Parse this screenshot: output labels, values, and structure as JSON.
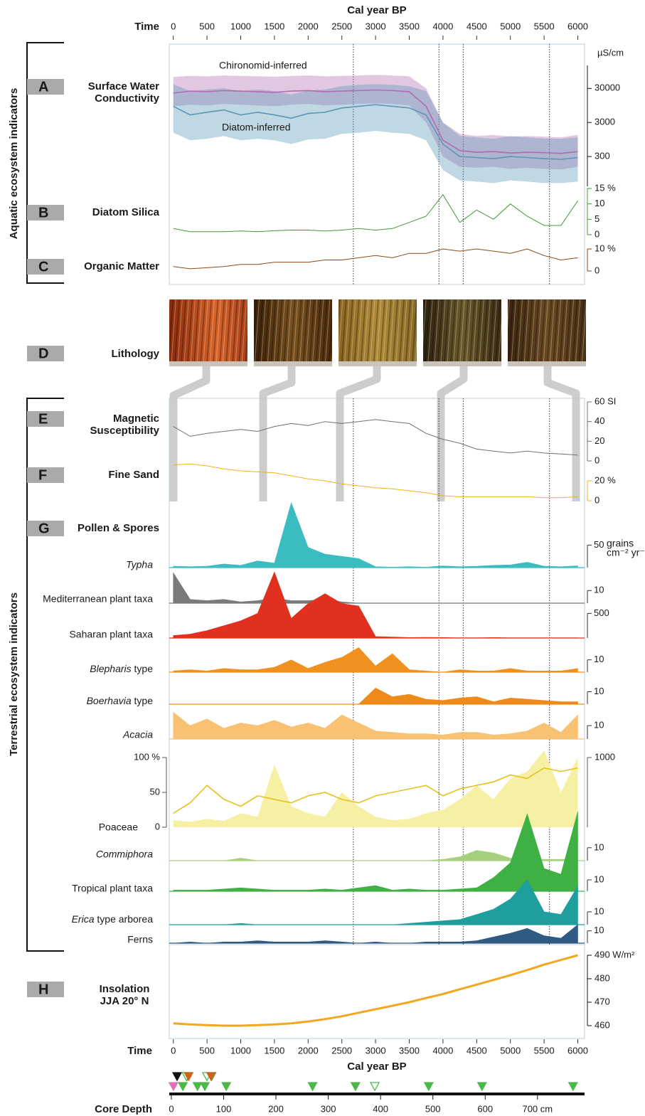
{
  "time_axis": {
    "title": "Time",
    "label": "Cal year BP",
    "xlim": [
      -60,
      6100
    ],
    "xticks": [
      0,
      500,
      1000,
      1500,
      2000,
      2500,
      3000,
      3500,
      4000,
      4500,
      5000,
      5500,
      6000
    ]
  },
  "years": [
    0,
    250,
    500,
    750,
    1000,
    1250,
    1500,
    1750,
    2000,
    2250,
    2500,
    2750,
    3000,
    3250,
    3500,
    3750,
    4000,
    4250,
    4500,
    4750,
    5000,
    5250,
    5500,
    5750,
    6000
  ],
  "reference_lines": [
    2670,
    3940,
    4300,
    5580
  ],
  "groups": [
    "Aquatic ecosystem indicators",
    "Terrestrial ecosystem indicators"
  ],
  "lithology": {
    "letter": "D",
    "title": "Lithology"
  },
  "pollen": {
    "letter": "G",
    "title": "Pollen & Spores"
  },
  "chart_data": [
    {
      "type": "band",
      "letter": "A",
      "title": [
        "Surface Water",
        "Conductivity"
      ],
      "unit": "µS/cm",
      "log": true,
      "ylim": [
        40,
        600000
      ],
      "yticks": [
        300,
        3000,
        30000
      ],
      "series": [
        {
          "name": "Chironomid-inferred",
          "color": "#b46cb0",
          "values": [
            22000,
            25000,
            24000,
            26000,
            25000,
            24000,
            23000,
            25000,
            26000,
            24000,
            25000,
            26000,
            27000,
            26000,
            24000,
            9000,
            900,
            450,
            400,
            420,
            380,
            400,
            390,
            370,
            420
          ],
          "upper": [
            65000,
            70000,
            68000,
            72000,
            70000,
            68000,
            66000,
            70000,
            72000,
            68000,
            70000,
            72000,
            75000,
            72000,
            68000,
            30000,
            3000,
            1400,
            1200,
            1300,
            1150,
            1200,
            1150,
            1100,
            1300
          ],
          "lower": [
            9000,
            10000,
            9500,
            10500,
            10000,
            9500,
            9000,
            10000,
            10500,
            9500,
            10000,
            10500,
            11000,
            10500,
            9500,
            3000,
            300,
            150,
            140,
            150,
            130,
            140,
            130,
            125,
            150
          ]
        },
        {
          "name": "Diatom-inferred",
          "color": "#5a98b6",
          "values": [
            9000,
            5000,
            6000,
            7000,
            5000,
            6000,
            5000,
            4000,
            5500,
            6000,
            8000,
            9000,
            10000,
            9000,
            8000,
            5000,
            700,
            300,
            280,
            260,
            300,
            280,
            260,
            250,
            280
          ],
          "upper": [
            40000,
            25000,
            28000,
            30000,
            25000,
            28000,
            25000,
            20000,
            26000,
            28000,
            35000,
            38000,
            40000,
            38000,
            35000,
            25000,
            3000,
            1200,
            1100,
            1000,
            1200,
            1100,
            1000,
            1000,
            1100
          ],
          "lower": [
            1500,
            900,
            1000,
            1200,
            900,
            1000,
            900,
            700,
            950,
            1000,
            1400,
            1500,
            1700,
            1500,
            1400,
            900,
            120,
            60,
            55,
            50,
            60,
            55,
            50,
            50,
            55
          ]
        }
      ]
    },
    {
      "type": "line",
      "letter": "B",
      "title": [
        "Diatom Silica"
      ],
      "color": "#3d9b35",
      "ylim": [
        0,
        15
      ],
      "yticks": [
        0,
        5,
        10,
        {
          "value": 15,
          "label": "15 %"
        }
      ],
      "values": [
        2,
        1,
        1,
        1,
        1.2,
        1,
        1.3,
        1.5,
        1.5,
        1.2,
        1.5,
        2,
        1.5,
        2,
        4,
        6,
        13,
        4,
        8,
        5,
        10,
        6,
        3,
        3,
        11
      ]
    },
    {
      "type": "line",
      "letter": "C",
      "title": [
        "Organic Matter"
      ],
      "color": "#8a4a12",
      "ylim": [
        0,
        10
      ],
      "yticks": [
        0,
        {
          "value": 10,
          "label": "10 %"
        }
      ],
      "values": [
        2,
        1,
        1.5,
        2,
        3,
        3,
        4,
        4,
        4,
        5,
        5,
        6,
        7,
        6,
        8,
        8,
        10,
        9,
        10,
        9,
        8,
        10,
        7,
        5,
        6
      ]
    },
    {
      "type": "line",
      "letter": "E",
      "title": [
        "Magnetic",
        "Susceptibility"
      ],
      "color": "#707070",
      "ylim": [
        0,
        60
      ],
      "yticks": [
        0,
        20,
        40,
        {
          "value": 60,
          "label": "60 SI"
        }
      ],
      "values": [
        35,
        25,
        28,
        30,
        32,
        30,
        35,
        38,
        36,
        40,
        38,
        40,
        42,
        40,
        38,
        28,
        22,
        18,
        12,
        10,
        8,
        10,
        8,
        7,
        6
      ]
    },
    {
      "type": "line",
      "letter": "F",
      "title": [
        "Fine Sand"
      ],
      "color": "#f2b21e",
      "ylim": [
        0,
        60
      ],
      "yticks": [
        0,
        {
          "value": 20,
          "label": "20 %"
        }
      ],
      "values": [
        36,
        37,
        35,
        32,
        30,
        29,
        28,
        25,
        22,
        20,
        17,
        15,
        13,
        12,
        10,
        8,
        5,
        4,
        4,
        4,
        4,
        4,
        3,
        3,
        4
      ]
    },
    {
      "type": "area",
      "name": "Typha",
      "italic": "all",
      "color": "#3bbcc0",
      "ylim": [
        0,
        150
      ],
      "yticks": [
        50
      ],
      "unit": [
        "grains",
        "cm⁻² yr⁻¹"
      ],
      "values": [
        3,
        2,
        3,
        8,
        5,
        15,
        10,
        144,
        45,
        30,
        25,
        20,
        2,
        1,
        2,
        1,
        4,
        2,
        3,
        5,
        6,
        12,
        3,
        2,
        4
      ]
    },
    {
      "type": "area",
      "name": "Mediterranean plant taxa",
      "color": "#7a7a7a",
      "ylim": [
        0,
        27
      ],
      "yticks": [
        10
      ],
      "values": [
        24,
        3,
        2,
        3,
        1,
        2,
        4,
        2,
        2,
        3,
        1,
        0,
        0,
        0,
        0,
        0,
        0,
        0,
        0,
        0,
        0,
        0,
        0,
        0,
        0
      ]
    },
    {
      "type": "area",
      "name": "Saharan plant taxa",
      "color": "#e0301f",
      "ylim": [
        0,
        1400
      ],
      "yticks": [
        500
      ],
      "values": [
        50,
        80,
        150,
        250,
        350,
        500,
        1340,
        400,
        700,
        900,
        700,
        650,
        30,
        20,
        10,
        15,
        10,
        5,
        5,
        10,
        5,
        5,
        5,
        5,
        5
      ]
    },
    {
      "type": "area",
      "name": "Blepharis type",
      "italic": "first",
      "color": "#f0901e",
      "ylim": [
        0,
        26
      ],
      "yticks": [
        10
      ],
      "values": [
        1,
        2,
        1,
        3,
        2,
        2,
        4,
        10,
        3,
        8,
        12,
        20,
        5,
        15,
        2,
        1,
        0,
        2,
        1,
        1,
        3,
        1,
        1,
        1,
        3
      ]
    },
    {
      "type": "area",
      "name": "Boerhavia type",
      "italic": "first",
      "color": "#ee8a1c",
      "ylim": [
        0,
        20
      ],
      "yticks": [
        10
      ],
      "values": [
        0,
        0,
        0,
        0,
        0,
        0,
        0,
        0,
        0,
        0,
        0,
        0,
        13,
        6,
        8,
        4,
        3,
        5,
        6,
        2,
        5,
        4,
        3,
        2,
        2
      ]
    },
    {
      "type": "area",
      "name": "Acacia",
      "italic": "all",
      "color": "#f8c272",
      "ylim": [
        0,
        26
      ],
      "yticks": [
        10
      ],
      "values": [
        20,
        10,
        15,
        8,
        12,
        10,
        14,
        9,
        12,
        8,
        18,
        12,
        6,
        5,
        4,
        4,
        3,
        5,
        5,
        3,
        4,
        6,
        12,
        5,
        18
      ]
    },
    {
      "type": "area",
      "name": "Poaceae",
      "ylim": [
        0,
        100
      ],
      "yticks": [
        0,
        50,
        {
          "value": 100,
          "label": "100 %"
        }
      ],
      "y2lim": [
        0,
        1000
      ],
      "y2ticks": [
        1000
      ],
      "series": [
        {
          "color": "#f6f0a4",
          "axis": "y2",
          "values": [
            100,
            80,
            120,
            90,
            200,
            150,
            900,
            300,
            200,
            150,
            500,
            300,
            150,
            100,
            120,
            200,
            250,
            400,
            600,
            400,
            700,
            800,
            1100,
            500,
            1000
          ]
        },
        {
          "color": "#e6c21e",
          "values": [
            20,
            35,
            60,
            40,
            30,
            45,
            40,
            35,
            45,
            50,
            40,
            35,
            45,
            50,
            55,
            60,
            45,
            55,
            60,
            65,
            75,
            70,
            85,
            80,
            85
          ]
        }
      ]
    },
    {
      "type": "area",
      "name": "Commiphora",
      "italic": "all",
      "color": "#a6d07e",
      "ylim": [
        0,
        22
      ],
      "yticks": [
        10
      ],
      "values": [
        0,
        0,
        0,
        0,
        2,
        0,
        0,
        0,
        0,
        0,
        0,
        0,
        0,
        0,
        0,
        0,
        1,
        3,
        8,
        6,
        2,
        1,
        1,
        1,
        1
      ]
    },
    {
      "type": "area",
      "name": "Tropical plant taxa",
      "color": "#3fb044",
      "ylim": [
        0,
        70
      ],
      "yticks": [
        10
      ],
      "values": [
        1,
        1,
        1,
        2,
        3,
        2,
        1,
        1,
        1,
        2,
        1,
        3,
        5,
        1,
        2,
        1,
        1,
        2,
        3,
        12,
        25,
        68,
        20,
        15,
        70
      ]
    },
    {
      "type": "area",
      "name": "Erica type arborea",
      "italic": "first",
      "color": "#1f9e9e",
      "ylim": [
        0,
        36
      ],
      "yticks": [
        10
      ],
      "values": [
        0,
        0,
        0,
        0,
        1,
        0,
        0,
        0,
        0,
        0,
        0,
        0,
        0,
        0,
        1,
        2,
        3,
        4,
        8,
        12,
        20,
        35,
        10,
        8,
        30
      ]
    },
    {
      "type": "area",
      "name": "Ferns",
      "color": "#2f5a82",
      "ylim": [
        0,
        15
      ],
      "yticks": [
        10
      ],
      "values": [
        0,
        1,
        0,
        1,
        1,
        2,
        1,
        1,
        1,
        2,
        1,
        0,
        1,
        0,
        0,
        1,
        1,
        1,
        2,
        5,
        8,
        12,
        6,
        4,
        15
      ]
    },
    {
      "type": "line",
      "letter": "H",
      "title": [
        "Insolation",
        "JJA 20° N"
      ],
      "color": "#f2a81e",
      "ylim": [
        455,
        494
      ],
      "yticks": [
        460,
        470,
        480,
        {
          "value": 490,
          "label": "490 W/m²"
        }
      ],
      "values": [
        461,
        460.5,
        460.2,
        460,
        460,
        460.2,
        460.5,
        461,
        461.8,
        462.8,
        464,
        465.5,
        467,
        468.5,
        470,
        471.8,
        473.5,
        475.5,
        477.5,
        479.5,
        481.5,
        483.7,
        486,
        488,
        490
      ]
    }
  ],
  "core_depth": {
    "label": "Core Depth",
    "xlim": [
      -4,
      790
    ],
    "xticks": [
      0,
      100,
      200,
      300,
      400,
      500,
      600,
      {
        "value": 700,
        "label": "700 cm"
      }
    ],
    "markers": [
      {
        "depth": 4,
        "color": "#e070b8",
        "filled": true
      },
      {
        "depth": 22,
        "color": "#4cb848",
        "filled": true
      },
      {
        "depth": 30,
        "color": "#4cb848",
        "filled": true
      },
      {
        "depth": 50,
        "color": "#4cb848",
        "filled": true
      },
      {
        "depth": 64,
        "color": "#4cb848",
        "filled": true
      },
      {
        "depth": 77,
        "color": "#4cb848",
        "filled": true
      },
      {
        "depth": 105,
        "color": "#4cb848",
        "filled": true
      },
      {
        "depth": 270,
        "color": "#4cb848",
        "filled": true
      },
      {
        "depth": 352,
        "color": "#4cb848",
        "filled": true
      },
      {
        "depth": 389,
        "color": "#4cb848",
        "filled": false
      },
      {
        "depth": 492,
        "color": "#4cb848",
        "filled": true
      },
      {
        "depth": 594,
        "color": "#4cb848",
        "filled": true
      },
      {
        "depth": 768,
        "color": "#4cb848",
        "filled": true
      },
      {
        "depth": 11,
        "color": "#111111",
        "filled": true
      },
      {
        "depth": 29,
        "color": "#4cb848",
        "filled": false
      },
      {
        "depth": 33,
        "color": "#c8641e",
        "filled": true
      },
      {
        "depth": 68,
        "color": "#4cb848",
        "filled": false
      },
      {
        "depth": 76,
        "color": "#c8641e",
        "filled": true
      }
    ]
  }
}
